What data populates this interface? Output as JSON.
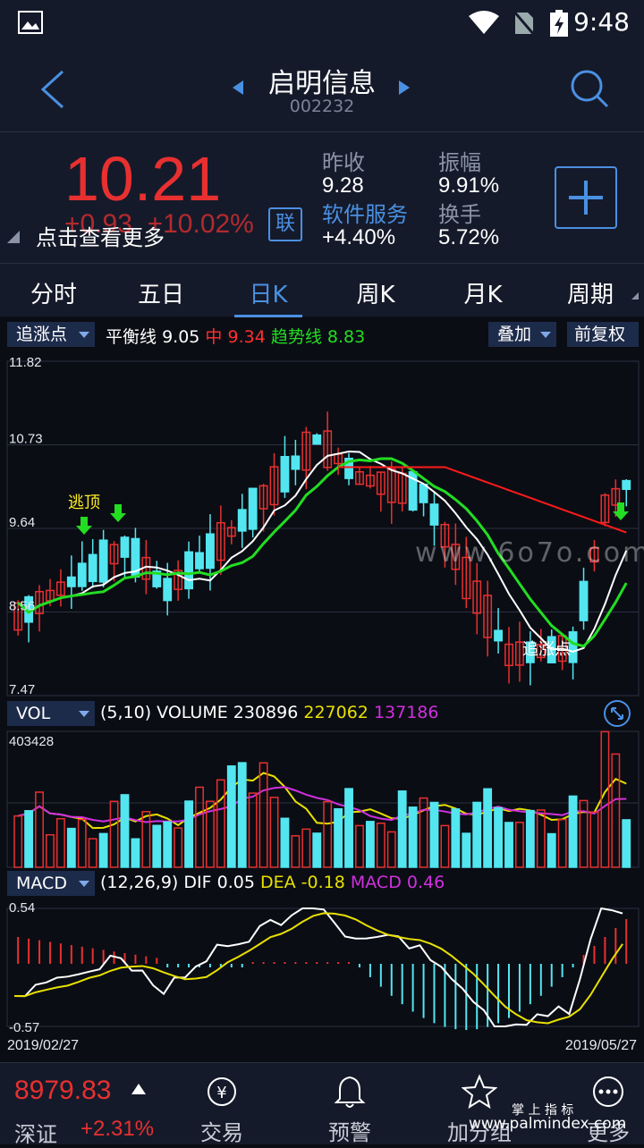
{
  "status": {
    "time": "9:48"
  },
  "header": {
    "title": "启明信息",
    "code": "002232"
  },
  "quote": {
    "price": "10.21",
    "change": "+0.93",
    "change_pct": "+10.02%",
    "tip": "点击查看更多",
    "link_badge": "联",
    "prev_close_label": "昨收",
    "prev_close": "9.28",
    "amplitude_label": "振幅",
    "amplitude": "9.91%",
    "sector_label": "软件服务",
    "sector_change": "+4.40%",
    "turnover_label": "换手",
    "turnover": "5.72%"
  },
  "tabs": [
    "分时",
    "五日",
    "日K",
    "周K",
    "月K",
    "周期"
  ],
  "indicators": {
    "main_chip": "追涨点",
    "balance_label": "平衡线",
    "balance_value": "9.05",
    "mid_label": "中",
    "mid_value": "9.34",
    "trend_label": "趋势线",
    "trend_value": "8.83",
    "overlay_chip": "叠加",
    "adjust_label": "前复权",
    "vol_chip": "VOL",
    "vol_params": "(5,10) VOLUME",
    "vol_value": "230896",
    "vol_ma5": "227062",
    "vol_ma10": "137186",
    "macd_chip": "MACD",
    "macd_params": "(12,26,9) DIF",
    "dif_value": "0.05",
    "dea_label": "DEA",
    "dea_value": "-0.18",
    "macd_label": "MACD",
    "macd_value": "0.46"
  },
  "chart_data": {
    "type": "candlestick",
    "y_ticks": [
      "11.82",
      "10.73",
      "9.64",
      "8.56",
      "7.47"
    ],
    "ylim": [
      7.47,
      11.82
    ],
    "vol_max_label": "403428",
    "macd_top_label": "0.54",
    "macd_bottom_label": "-0.57",
    "start_date": "2019/02/27",
    "end_date": "2019/05/27",
    "annotations": [
      "逃顶",
      "追涨点"
    ],
    "watermark": "www.6o7o.com",
    "colors": {
      "up": "#e83030",
      "down": "#53e6f0",
      "balance": "#ffffff",
      "trend": "#22dd22",
      "mid": "#ff1a1a",
      "ma5": "#e8e000",
      "ma10": "#d030e0"
    }
  },
  "bottom": {
    "index_value": "8979.83",
    "index_name": "深证",
    "index_change": "+2.31%",
    "trade": "交易",
    "alert": "预警",
    "watchlist": "加分组",
    "more": "更多",
    "footer_brand": "掌 上 指 标",
    "footer_url": "www.palmindex.com"
  }
}
